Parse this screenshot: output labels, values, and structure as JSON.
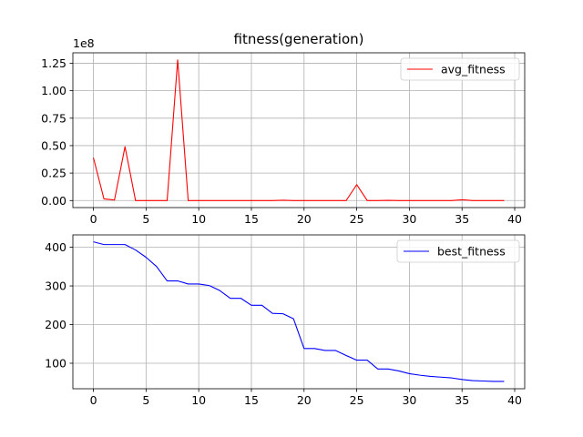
{
  "chart_data": [
    {
      "type": "line",
      "title": "fitness(generation)",
      "xlabel": "",
      "ylabel": "",
      "offset_text": "1e8",
      "xlim": [
        -1.95,
        40.95
      ],
      "ylim": [
        -0.064,
        1.345
      ],
      "xticks": [
        0,
        5,
        10,
        15,
        20,
        25,
        30,
        35,
        40
      ],
      "yticks": [
        0.0,
        0.25,
        0.5,
        0.75,
        1.0,
        1.25
      ],
      "ytick_labels": [
        "0.00",
        "0.25",
        "0.50",
        "0.75",
        "1.00",
        "1.25"
      ],
      "grid": true,
      "legend_position": "top-right",
      "series": [
        {
          "name": "avg_fitness",
          "color": "#ff0000",
          "x": [
            0,
            1,
            2,
            3,
            4,
            5,
            6,
            7,
            8,
            9,
            10,
            11,
            12,
            13,
            14,
            15,
            16,
            17,
            18,
            19,
            20,
            21,
            22,
            23,
            24,
            25,
            26,
            27,
            28,
            29,
            30,
            31,
            32,
            33,
            34,
            35,
            36,
            37,
            38,
            39
          ],
          "y": [
            0.39,
            0.015,
            0.005,
            0.49,
            0.0,
            0.0,
            0.0,
            0.0,
            1.28,
            0.0,
            0.0,
            0.0,
            0.0,
            0.0,
            0.0,
            0.0,
            0.0,
            0.0,
            0.003,
            0.0,
            0.0,
            0.0,
            0.0,
            0.0,
            0.0,
            0.145,
            0.0,
            0.0,
            0.002,
            0.0,
            0.0,
            0.0,
            0.0,
            0.0,
            0.0,
            0.007,
            0.0,
            0.0,
            0.0,
            0.0
          ]
        }
      ]
    },
    {
      "type": "line",
      "title": "",
      "xlabel": "",
      "ylabel": "",
      "xlim": [
        -1.95,
        40.95
      ],
      "ylim": [
        34,
        432
      ],
      "xticks": [
        0,
        5,
        10,
        15,
        20,
        25,
        30,
        35,
        40
      ],
      "yticks": [
        100,
        200,
        300,
        400
      ],
      "ytick_labels": [
        "100",
        "200",
        "300",
        "400"
      ],
      "grid": true,
      "legend_position": "top-right",
      "series": [
        {
          "name": "best_fitness",
          "color": "#0000ff",
          "x": [
            0,
            1,
            2,
            3,
            4,
            5,
            6,
            7,
            8,
            9,
            10,
            11,
            12,
            13,
            14,
            15,
            16,
            17,
            18,
            19,
            20,
            21,
            22,
            23,
            24,
            25,
            26,
            27,
            28,
            29,
            30,
            31,
            32,
            33,
            34,
            35,
            36,
            37,
            38,
            39
          ],
          "y": [
            414,
            407,
            407,
            407,
            393,
            374,
            350,
            313,
            313,
            305,
            305,
            301,
            288,
            268,
            268,
            250,
            250,
            229,
            228,
            215,
            138,
            138,
            133,
            133,
            120,
            108,
            108,
            85,
            85,
            80,
            73,
            69,
            66,
            64,
            62,
            58,
            55,
            54,
            53,
            53
          ]
        }
      ]
    }
  ]
}
